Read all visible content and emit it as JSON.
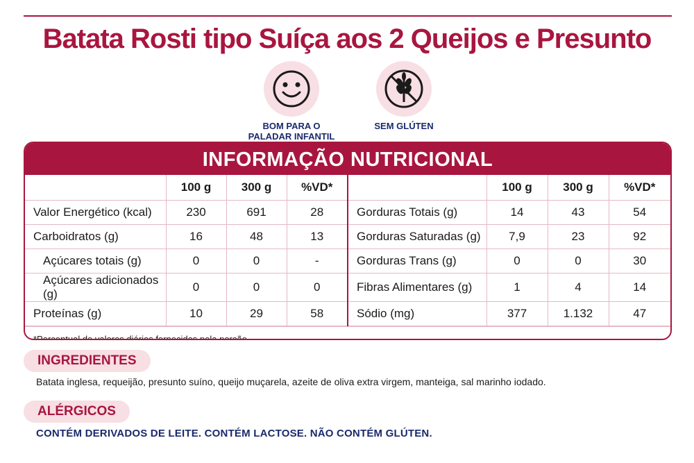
{
  "title": "Batata Rosti tipo Suíça aos 2 Queijos e Presunto",
  "badges": {
    "kids": {
      "icon": "smiley-face-icon",
      "label": "BOM PARA O\nPALADAR INFANTIL"
    },
    "gluten": {
      "icon": "no-wheat-icon",
      "label": "SEM GLÚTEN"
    }
  },
  "nutrition": {
    "header": "INFORMAÇÃO NUTRICIONAL",
    "columns": [
      "100 g",
      "300 g",
      "%VD*"
    ],
    "left_rows": [
      {
        "label": "Valor Energético (kcal)",
        "values": [
          "230",
          "691",
          "28"
        ]
      },
      {
        "label": "Carboidratos (g)",
        "values": [
          "16",
          "48",
          "13"
        ]
      },
      {
        "label": "Açúcares totais (g)",
        "values": [
          "0",
          "0",
          "-"
        ]
      },
      {
        "label": "Açúcares adicionados (g)",
        "values": [
          "0",
          "0",
          "0"
        ]
      },
      {
        "label": "Proteínas (g)",
        "values": [
          "10",
          "29",
          "58"
        ]
      }
    ],
    "right_rows": [
      {
        "label": "Gorduras Totais (g)",
        "values": [
          "14",
          "43",
          "54"
        ]
      },
      {
        "label": "Gorduras Saturadas (g)",
        "values": [
          "7,9",
          "23",
          "92"
        ]
      },
      {
        "label": "Gorduras Trans (g)",
        "values": [
          "0",
          "0",
          "30"
        ]
      },
      {
        "label": "Fibras Alimentares (g)",
        "values": [
          "1",
          "4",
          "14"
        ]
      },
      {
        "label": "Sódio (mg)",
        "values": [
          "377",
          "1.132",
          "47"
        ]
      }
    ],
    "footnote": "*Percentual de valores diários fornecidos pela porção."
  },
  "ingredients": {
    "label": "INGREDIENTES",
    "text": "Batata inglesa, requeijão, presunto suíno, queijo muçarela, azeite de oliva extra virgem, manteiga, sal marinho iodado."
  },
  "allergens": {
    "label": "ALÉRGICOS",
    "text": "CONTÉM DERIVADOS DE LEITE. CONTÉM LACTOSE. NÃO CONTÉM GLÚTEN."
  },
  "colors": {
    "brand": "#a8163f",
    "pill": "#f7dfe4",
    "navy": "#1a2a6c"
  }
}
